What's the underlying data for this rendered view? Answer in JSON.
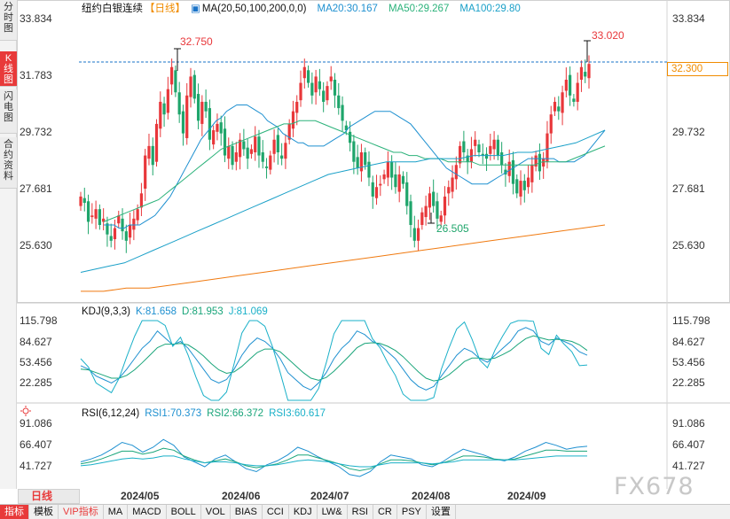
{
  "left_tabs": [
    {
      "label": "分时图",
      "active": false
    },
    {
      "label": "K线图",
      "active": true
    },
    {
      "label": "闪电图",
      "active": false
    },
    {
      "label": "合约资料",
      "active": false
    }
  ],
  "main_header": {
    "title": "纽约白银连续",
    "period_tag": "【日线】",
    "ma_params": "MA(20,50,100,200,0,0)",
    "ma20": "MA20:30.167",
    "ma50": "MA50:29.267",
    "ma100": "MA100:29.80"
  },
  "price_marker": "32.300",
  "high_label": "33.020",
  "prev_high_label": "32.750",
  "low_label": "26.505",
  "main_y_ticks": [
    "33.834",
    "31.783",
    "29.732",
    "27.681",
    "25.630"
  ],
  "kdj_header": {
    "name": "KDJ(9,3,3)",
    "k": "K:81.658",
    "d": "D:81.953",
    "j": "J:81.069"
  },
  "kdj_y_ticks": [
    "115.798",
    "84.627",
    "53.456",
    "22.285"
  ],
  "rsi_header": {
    "name": "RSI(6,12,24)",
    "rsi1": "RSI1:70.373",
    "rsi2": "RSI2:66.372",
    "rsi3": "RSI3:60.617"
  },
  "rsi_y_ticks": [
    "91.086",
    "66.407",
    "41.727"
  ],
  "x_labels": [
    "2024/05",
    "2024/06",
    "2024/07",
    "2024/08",
    "2024/09"
  ],
  "period_button": "日线",
  "watermark": "FX678",
  "toolbar": [
    {
      "label": "指标",
      "active": true
    },
    {
      "label": "模板",
      "active": false
    },
    {
      "label": "VIP指标",
      "active": false,
      "vip": true
    },
    {
      "label": "MA",
      "active": false
    },
    {
      "label": "MACD",
      "active": false
    },
    {
      "label": "BOLL",
      "active": false
    },
    {
      "label": "VOL",
      "active": false
    },
    {
      "label": "BIAS",
      "active": false
    },
    {
      "label": "CCI",
      "active": false
    },
    {
      "label": "KDJ",
      "active": false
    },
    {
      "label": "LW&",
      "active": false
    },
    {
      "label": "RSI",
      "active": false
    },
    {
      "label": "CR",
      "active": false
    },
    {
      "label": "PSY",
      "active": false
    },
    {
      "label": "设置",
      "active": false
    }
  ],
  "colors": {
    "up": "#e8373a",
    "down": "#1fa56b",
    "ma20": "#1e90d0",
    "ma50": "#2bb27a",
    "ma100": "#1aa0c8",
    "ma200": "#f07a10",
    "price_line": "#1a73c8",
    "kdj_k": "#1e90d0",
    "kdj_d": "#1aa57a",
    "kdj_j": "#1ab0c8"
  },
  "chart_data": {
    "type": "candlestick",
    "title": "纽约白银连续",
    "y_range": [
      25.0,
      34.2
    ],
    "closes": [
      28.2,
      28.0,
      27.4,
      27.6,
      27.8,
      27.3,
      27.5,
      27.0,
      26.8,
      27.2,
      27.6,
      27.1,
      26.8,
      27.3,
      27.5,
      27.8,
      28.3,
      29.5,
      29.8,
      29.2,
      30.5,
      31.2,
      30.8,
      31.6,
      32.3,
      31.5,
      30.8,
      30.2,
      31.4,
      32.0,
      31.3,
      30.6,
      31.2,
      30.9,
      30.0,
      30.3,
      30.5,
      30.2,
      29.5,
      29.8,
      29.2,
      29.6,
      30.0,
      29.7,
      29.4,
      29.7,
      30.1,
      29.5,
      29.3,
      29.1,
      29.5,
      30.0,
      29.6,
      29.4,
      29.9,
      30.5,
      30.9,
      31.2,
      31.8,
      32.3,
      31.8,
      31.4,
      32.0,
      31.6,
      31.2,
      31.7,
      32.0,
      31.4,
      31.0,
      30.6,
      30.3,
      29.9,
      29.3,
      29.1,
      29.6,
      29.2,
      28.8,
      28.2,
      28.5,
      28.6,
      28.9,
      29.3,
      28.8,
      28.5,
      28.9,
      28.6,
      27.9,
      27.3,
      26.8,
      27.2,
      27.7,
      27.9,
      28.3,
      27.9,
      27.5,
      27.6,
      28.2,
      28.5,
      28.8,
      29.2,
      29.8,
      29.6,
      29.3,
      29.7,
      30.0,
      29.6,
      29.5,
      29.4,
      29.8,
      30.0,
      29.5,
      29.2,
      28.9,
      29.3,
      28.6,
      28.3,
      28.7,
      28.4,
      28.8,
      29.2,
      29.5,
      29.0,
      29.4,
      30.2,
      30.8,
      31.2,
      30.9,
      31.5,
      31.9,
      31.4,
      31.2,
      31.8,
      32.3,
      32.0,
      32.4
    ],
    "ma20": [
      27.3,
      27.3,
      27.3,
      27.2,
      27.2,
      27.3,
      27.3,
      27.3,
      27.4,
      27.5,
      27.6,
      27.8,
      28.0,
      28.2,
      28.5,
      28.8,
      29.1,
      29.4,
      29.7,
      30.0,
      30.2,
      30.4,
      30.6,
      30.7,
      30.9,
      31.0,
      31.1,
      31.1,
      31.1,
      31.0,
      30.9,
      30.8,
      30.6,
      30.5,
      30.4,
      30.2,
      30.1,
      30.0,
      29.9,
      29.9,
      29.8,
      29.8,
      29.8,
      29.8,
      29.9,
      30.0,
      30.1,
      30.2,
      30.4,
      30.5,
      30.6,
      30.7,
      30.8,
      30.9,
      30.9,
      30.9,
      30.9,
      30.8,
      30.7,
      30.6,
      30.5,
      30.3,
      30.1,
      29.9,
      29.7,
      29.5,
      29.3,
      29.1,
      29.0,
      28.9,
      28.8,
      28.7,
      28.6,
      28.6,
      28.6,
      28.6,
      28.7,
      28.8,
      28.9,
      29.0,
      29.1,
      29.2,
      29.3,
      29.4,
      29.4,
      29.4,
      29.4,
      29.4,
      29.4,
      29.3,
      29.3,
      29.3,
      29.3,
      29.4,
      29.5,
      29.7,
      29.9,
      30.1,
      30.3
    ],
    "ma50": [
      27.4,
      27.5,
      27.6,
      27.7,
      27.8,
      27.9,
      28.0,
      28.1,
      28.3,
      28.5,
      28.7,
      28.9,
      29.1,
      29.3,
      29.5,
      29.7,
      29.8,
      29.9,
      30.0,
      30.1,
      30.2,
      30.3,
      30.4,
      30.5,
      30.5,
      30.6,
      30.6,
      30.6,
      30.5,
      30.4,
      30.3,
      30.2,
      30.1,
      30.0,
      29.9,
      29.8,
      29.7,
      29.6,
      29.6,
      29.5,
      29.5,
      29.4,
      29.4,
      29.4,
      29.3,
      29.3,
      29.3,
      29.3,
      29.2,
      29.2,
      29.2,
      29.2,
      29.2,
      29.2,
      29.2,
      29.2,
      29.3,
      29.3,
      29.3,
      29.3,
      29.4,
      29.5,
      29.6,
      29.7,
      29.8
    ],
    "ma100": [
      25.8,
      25.9,
      26.0,
      26.1,
      26.3,
      26.5,
      26.7,
      26.9,
      27.1,
      27.3,
      27.5,
      27.7,
      27.9,
      28.1,
      28.3,
      28.5,
      28.7,
      28.9,
      29.0,
      29.1,
      29.2,
      29.3,
      29.3,
      29.3,
      29.4,
      29.4,
      29.4,
      29.5,
      29.5,
      29.5,
      29.6,
      29.6,
      29.7,
      29.8,
      29.9,
      30.1,
      30.3
    ],
    "ma200": [
      25.2,
      25.2,
      25.3,
      25.3,
      25.4,
      25.5,
      25.6,
      25.7,
      25.8,
      25.9,
      26.0,
      26.1,
      26.2,
      26.3,
      26.4,
      26.5,
      26.6,
      26.7,
      26.8,
      26.9,
      27.0,
      27.1,
      27.2,
      27.3
    ],
    "kdj_range": [
      10,
      125
    ],
    "rsi_range": [
      30,
      100
    ],
    "k": [
      60,
      55,
      45,
      40,
      35,
      42,
      55,
      70,
      85,
      95,
      110,
      100,
      90,
      95,
      85,
      70,
      55,
      40,
      35,
      40,
      55,
      75,
      90,
      100,
      95,
      85,
      70,
      50,
      40,
      30,
      25,
      35,
      50,
      70,
      85,
      95,
      110,
      105,
      95,
      90,
      80,
      70,
      55,
      40,
      30,
      25,
      30,
      45,
      60,
      75,
      85,
      80,
      70,
      65,
      75,
      85,
      95,
      110,
      115,
      110,
      95,
      90,
      100,
      95,
      90,
      80,
      75
    ],
    "d": [
      55,
      54,
      50,
      46,
      42,
      42,
      46,
      54,
      64,
      75,
      86,
      91,
      91,
      92,
      90,
      83,
      74,
      63,
      54,
      49,
      51,
      59,
      69,
      79,
      84,
      84,
      80,
      70,
      60,
      50,
      42,
      39,
      43,
      52,
      63,
      74,
      86,
      92,
      93,
      92,
      88,
      82,
      73,
      62,
      51,
      42,
      38,
      40,
      47,
      56,
      66,
      71,
      71,
      69,
      71,
      76,
      82,
      91,
      99,
      103,
      100,
      97,
      98,
      97,
      95,
      90,
      82
    ],
    "j": [
      70,
      58,
      35,
      28,
      21,
      42,
      73,
      102,
      127,
      135,
      158,
      118,
      88,
      101,
      75,
      44,
      17,
      0,
      0,
      22,
      63,
      107,
      132,
      142,
      117,
      87,
      50,
      10,
      0,
      0,
      0,
      27,
      64,
      106,
      129,
      137,
      158,
      131,
      99,
      86,
      64,
      46,
      19,
      0,
      0,
      0,
      14,
      55,
      86,
      113,
      123,
      98,
      68,
      57,
      83,
      103,
      121,
      148,
      147,
      124,
      85,
      76,
      104,
      91,
      80,
      60,
      61
    ],
    "rsi1": [
      55,
      58,
      62,
      68,
      75,
      72,
      65,
      70,
      78,
      72,
      60,
      55,
      50,
      58,
      62,
      55,
      48,
      45,
      52,
      56,
      62,
      70,
      66,
      60,
      55,
      50,
      42,
      40,
      45,
      55,
      62,
      60,
      58,
      52,
      50,
      55,
      62,
      68,
      65,
      62,
      58,
      56,
      60,
      66,
      70,
      75,
      72,
      68,
      70,
      71
    ],
    "rsi2": [
      53,
      55,
      58,
      62,
      66,
      66,
      63,
      65,
      69,
      67,
      61,
      57,
      54,
      56,
      58,
      55,
      51,
      49,
      51,
      53,
      57,
      62,
      62,
      59,
      56,
      53,
      48,
      46,
      48,
      53,
      57,
      57,
      56,
      54,
      52,
      54,
      57,
      61,
      61,
      60,
      58,
      57,
      58,
      61,
      64,
      67,
      67,
      66,
      66,
      66
    ],
    "rsi3": [
      51,
      52,
      54,
      56,
      58,
      59,
      58,
      59,
      61,
      61,
      58,
      56,
      54,
      55,
      55,
      54,
      52,
      51,
      51,
      52,
      54,
      56,
      57,
      56,
      55,
      53,
      51,
      50,
      50,
      52,
      54,
      54,
      54,
      54,
      53,
      54,
      55,
      57,
      57,
      57,
      57,
      57,
      57,
      58,
      59,
      60,
      61,
      61,
      61,
      61
    ]
  }
}
